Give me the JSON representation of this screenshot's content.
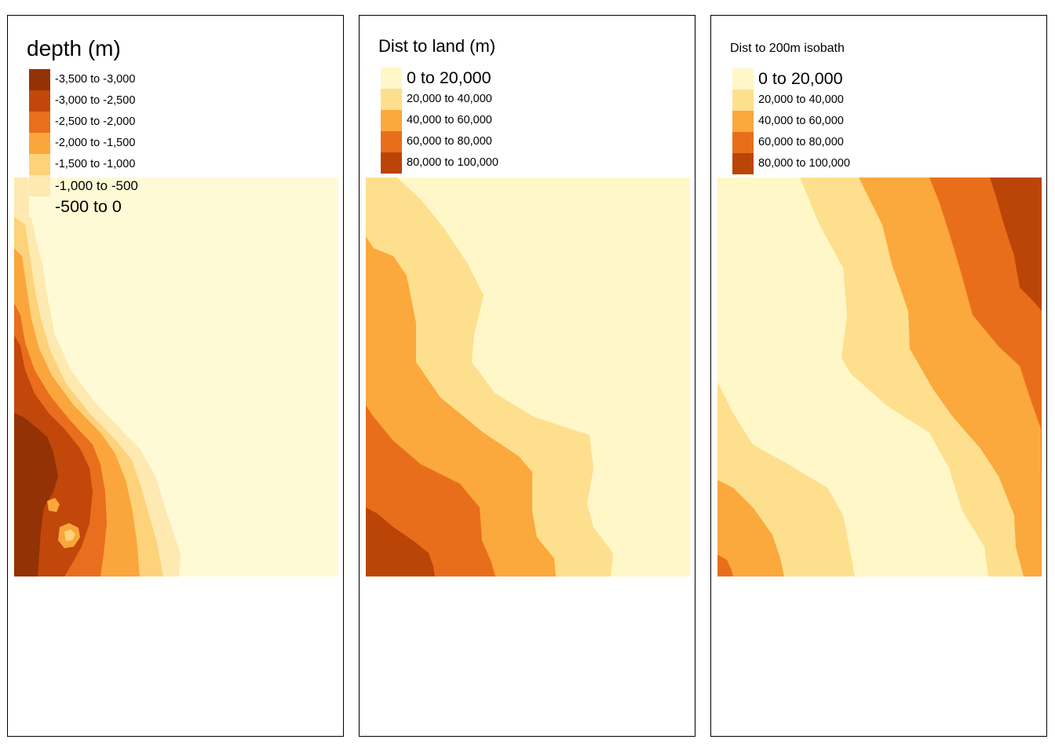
{
  "panels": [
    {
      "title": "depth (m)",
      "legend": [
        {
          "label": "-3,500 to -3,000",
          "color": "#933204"
        },
        {
          "label": "-3,000 to -2,500",
          "color": "#C2470A"
        },
        {
          "label": "-2,500 to -2,000",
          "color": "#E96F1E"
        },
        {
          "label": "-2,000 to -1,500",
          "color": "#FBA63C"
        },
        {
          "label": "-1,500 to -1,000",
          "color": "#FED27A"
        },
        {
          "label": "-1,000 to -500",
          "color": "#FEE9B0"
        },
        {
          "label": "-500 to 0",
          "color": "#FFFAD6"
        }
      ]
    },
    {
      "title": "Dist to land (m)",
      "legend": [
        {
          "label": "0 to 20,000",
          "color": "#FFF7C8"
        },
        {
          "label": "20,000 to 40,000",
          "color": "#FDDF8E"
        },
        {
          "label": "40,000 to 60,000",
          "color": "#FBA83D"
        },
        {
          "label": "60,000 to 80,000",
          "color": "#E96E1C"
        },
        {
          "label": "80,000 to 100,000",
          "color": "#BB4506"
        }
      ]
    },
    {
      "title": "Dist to 200m isobath",
      "legend": [
        {
          "label": "0 to 20,000",
          "color": "#FFF7C8"
        },
        {
          "label": "20,000 to 40,000",
          "color": "#FDDF8E"
        },
        {
          "label": "40,000 to 60,000",
          "color": "#FBA83D"
        },
        {
          "label": "60,000 to 80,000",
          "color": "#E96E1C"
        },
        {
          "label": "80,000 to 100,000",
          "color": "#BB4506"
        }
      ]
    }
  ]
}
